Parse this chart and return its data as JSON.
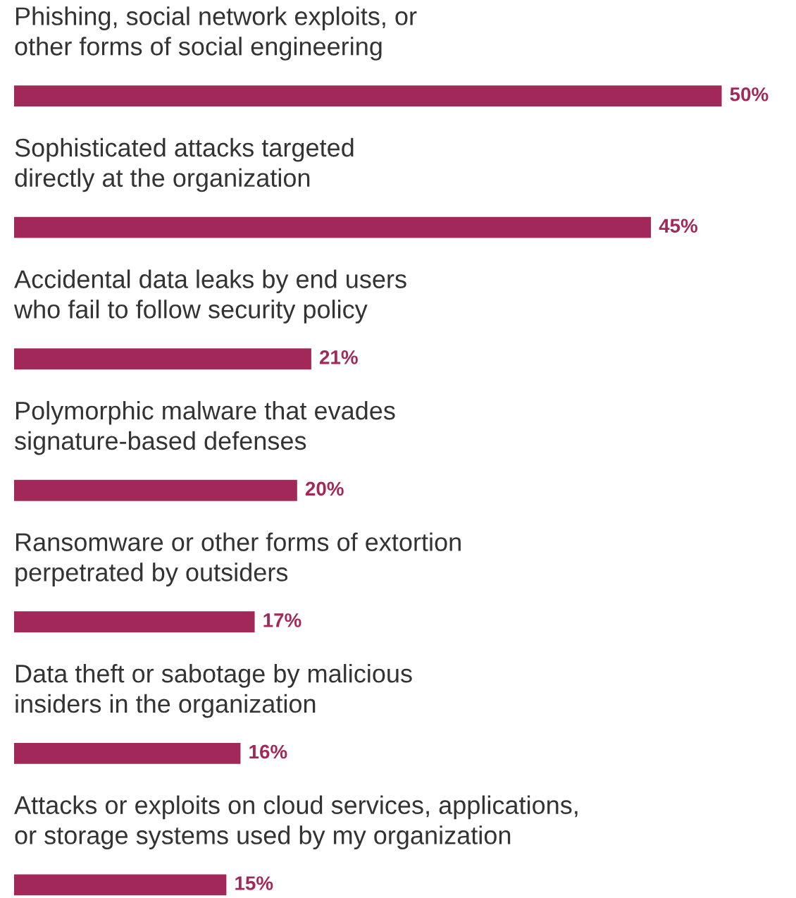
{
  "chart_data": {
    "type": "bar",
    "orientation": "horizontal",
    "categories": [
      "Phishing, social network exploits, or\nother forms of social engineering",
      "Sophisticated attacks targeted\ndirectly at the organization",
      "Accidental data leaks by end users\nwho fail to follow security policy",
      "Polymorphic malware that evades\nsignature-based defenses",
      "Ransomware or other forms of extortion\nperpetrated by outsiders",
      "Data theft or sabotage by malicious\ninsiders in the organization",
      "Attacks or exploits on cloud services, applications,\nor storage systems used by my organization"
    ],
    "values": [
      50,
      45,
      21,
      20,
      17,
      16,
      15
    ],
    "value_labels": [
      "50%",
      "45%",
      "21%",
      "20%",
      "17%",
      "16%",
      "15%"
    ],
    "color": "#a3285a"
  }
}
